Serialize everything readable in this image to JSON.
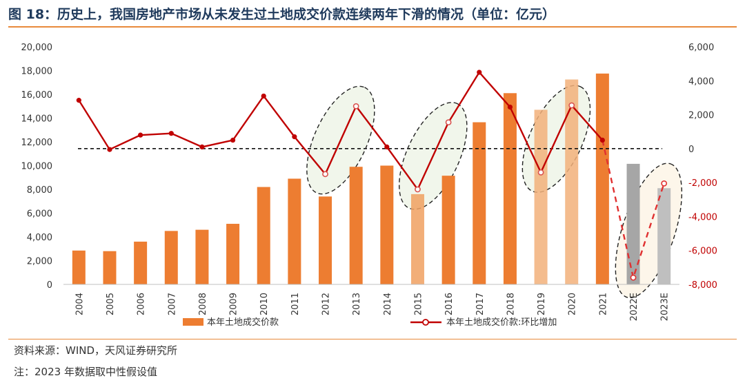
{
  "title": "图 18：历史上，我国房地产市场从未发生过土地成交价款连续两年下滑的情况（单位：亿元）",
  "source": "资料来源：WIND，天风证券研究所",
  "note": "注：2023 年数据取中性假设值",
  "chart_data": {
    "type": "bar+line",
    "categories": [
      "2004",
      "2005",
      "2006",
      "2007",
      "2008",
      "2009",
      "2010",
      "2011",
      "2012",
      "2013",
      "2014",
      "2015",
      "2016",
      "2017",
      "2018",
      "2019",
      "2020",
      "2021",
      "2022E",
      "2023E"
    ],
    "series": [
      {
        "name": "本年土地成交价款",
        "type": "bar",
        "axis": "left",
        "values": [
          2850,
          2800,
          3600,
          4500,
          4600,
          5100,
          8200,
          8900,
          7400,
          9900,
          10000,
          7600,
          9150,
          13650,
          16100,
          14700,
          17250,
          17750,
          10150,
          8100
        ],
        "color": "#ed7d31",
        "highlight_colors": {
          "2015": "#f0a060",
          "2019": "#f2b07a",
          "2020": "#f2b07a",
          "2022E": "#a6a6a6",
          "2023E": "#bfbfbf"
        }
      },
      {
        "name": "本年土地成交价款:环比增加",
        "type": "line",
        "axis": "right",
        "values": [
          2850,
          -50,
          800,
          900,
          100,
          500,
          3100,
          700,
          -1500,
          2500,
          100,
          -2400,
          1550,
          4500,
          2450,
          -1400,
          2550,
          500,
          -7600,
          -2050
        ],
        "color": "#c00000",
        "dashed_from": "2021"
      }
    ],
    "y_left": {
      "min": 0,
      "max": 20000,
      "ticks": [
        0,
        2000,
        4000,
        6000,
        8000,
        10000,
        12000,
        14000,
        16000,
        18000,
        20000
      ],
      "tick_labels": [
        "0",
        "2,000",
        "4,000",
        "6,000",
        "8,000",
        "10,000",
        "12,000",
        "14,000",
        "16,000",
        "18,000",
        "20,000"
      ]
    },
    "y_right": {
      "min": -8000,
      "max": 6000,
      "ticks": [
        -8000,
        -6000,
        -4000,
        -2000,
        0,
        2000,
        4000,
        6000
      ],
      "tick_labels": [
        "-8,000",
        "-6,000",
        "-4,000",
        "-2,000",
        "0",
        "2,000",
        "4,000",
        "6,000"
      ],
      "negative_label_color": "#c00000"
    },
    "reference_line": {
      "axis": "right",
      "value": 0,
      "style": "dashed"
    },
    "highlight_ellipses": [
      {
        "from": "2012",
        "to": "2013",
        "fill": "#eef4e8"
      },
      {
        "from": "2015",
        "to": "2016",
        "fill": "#eef4e8"
      },
      {
        "from": "2019",
        "to": "2020",
        "fill": "#eef4e8"
      },
      {
        "from": "2022E",
        "to": "2023E",
        "fill": "#fdf5e6"
      }
    ],
    "legend": {
      "placement": "bottom"
    }
  }
}
